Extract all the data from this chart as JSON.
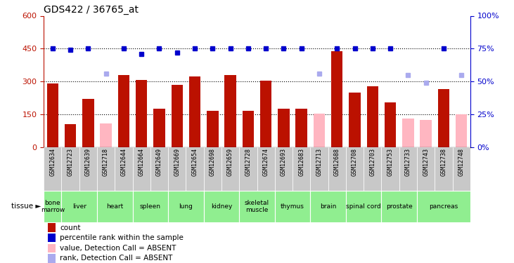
{
  "title": "GDS422 / 36765_at",
  "samples": [
    "GSM12634",
    "GSM12723",
    "GSM12639",
    "GSM12718",
    "GSM12644",
    "GSM12664",
    "GSM12649",
    "GSM12669",
    "GSM12654",
    "GSM12698",
    "GSM12659",
    "GSM12728",
    "GSM12674",
    "GSM12693",
    "GSM12683",
    "GSM12713",
    "GSM12688",
    "GSM12708",
    "GSM12703",
    "GSM12753",
    "GSM12733",
    "GSM12743",
    "GSM12738",
    "GSM12748"
  ],
  "count_values": [
    290,
    105,
    220,
    null,
    330,
    308,
    175,
    285,
    322,
    165,
    330,
    165,
    305,
    175,
    175,
    null,
    440,
    250,
    280,
    205,
    null,
    null,
    265,
    null
  ],
  "count_absent": [
    null,
    null,
    null,
    110,
    null,
    null,
    null,
    null,
    null,
    null,
    null,
    null,
    null,
    null,
    null,
    155,
    null,
    null,
    null,
    null,
    130,
    125,
    null,
    150
  ],
  "rank_pct_present": [
    75,
    74,
    75,
    null,
    75,
    71,
    75,
    72,
    75,
    75,
    75,
    75,
    75,
    75,
    75,
    null,
    75,
    75,
    75,
    75,
    null,
    null,
    75,
    null
  ],
  "rank_pct_absent": [
    null,
    null,
    null,
    56,
    null,
    null,
    null,
    null,
    null,
    null,
    null,
    null,
    null,
    null,
    null,
    56,
    null,
    null,
    null,
    null,
    55,
    49,
    null,
    55
  ],
  "tissues": [
    {
      "name": "bone\nmarrow",
      "start": 0,
      "end": 1
    },
    {
      "name": "liver",
      "start": 1,
      "end": 3
    },
    {
      "name": "heart",
      "start": 3,
      "end": 5
    },
    {
      "name": "spleen",
      "start": 5,
      "end": 7
    },
    {
      "name": "lung",
      "start": 7,
      "end": 9
    },
    {
      "name": "kidney",
      "start": 9,
      "end": 11
    },
    {
      "name": "skeletal\nmuscle",
      "start": 11,
      "end": 13
    },
    {
      "name": "thymus",
      "start": 13,
      "end": 15
    },
    {
      "name": "brain",
      "start": 15,
      "end": 17
    },
    {
      "name": "spinal cord",
      "start": 17,
      "end": 19
    },
    {
      "name": "prostate",
      "start": 19,
      "end": 21
    },
    {
      "name": "pancreas",
      "start": 21,
      "end": 24
    }
  ],
  "ylim_left": [
    0,
    600
  ],
  "ylim_right": [
    0,
    100
  ],
  "yticks_left": [
    0,
    150,
    300,
    450,
    600
  ],
  "yticks_right": [
    0,
    25,
    50,
    75,
    100
  ],
  "bar_color_present": "#BB1100",
  "bar_color_absent": "#FFB6C1",
  "dot_color_present": "#0000CC",
  "dot_color_absent": "#AAAAEE",
  "tissue_color": "#90EE90",
  "sample_bg_color": "#C8C8C8",
  "title_fontsize": 10,
  "tick_fontsize": 8,
  "bar_width": 0.65,
  "legend_items": [
    {
      "color": "#BB1100",
      "marker": "rect",
      "label": "count"
    },
    {
      "color": "#0000CC",
      "marker": "rect",
      "label": "percentile rank within the sample"
    },
    {
      "color": "#FFB6C1",
      "marker": "rect",
      "label": "value, Detection Call = ABSENT"
    },
    {
      "color": "#AAAAEE",
      "marker": "rect",
      "label": "rank, Detection Call = ABSENT"
    }
  ]
}
